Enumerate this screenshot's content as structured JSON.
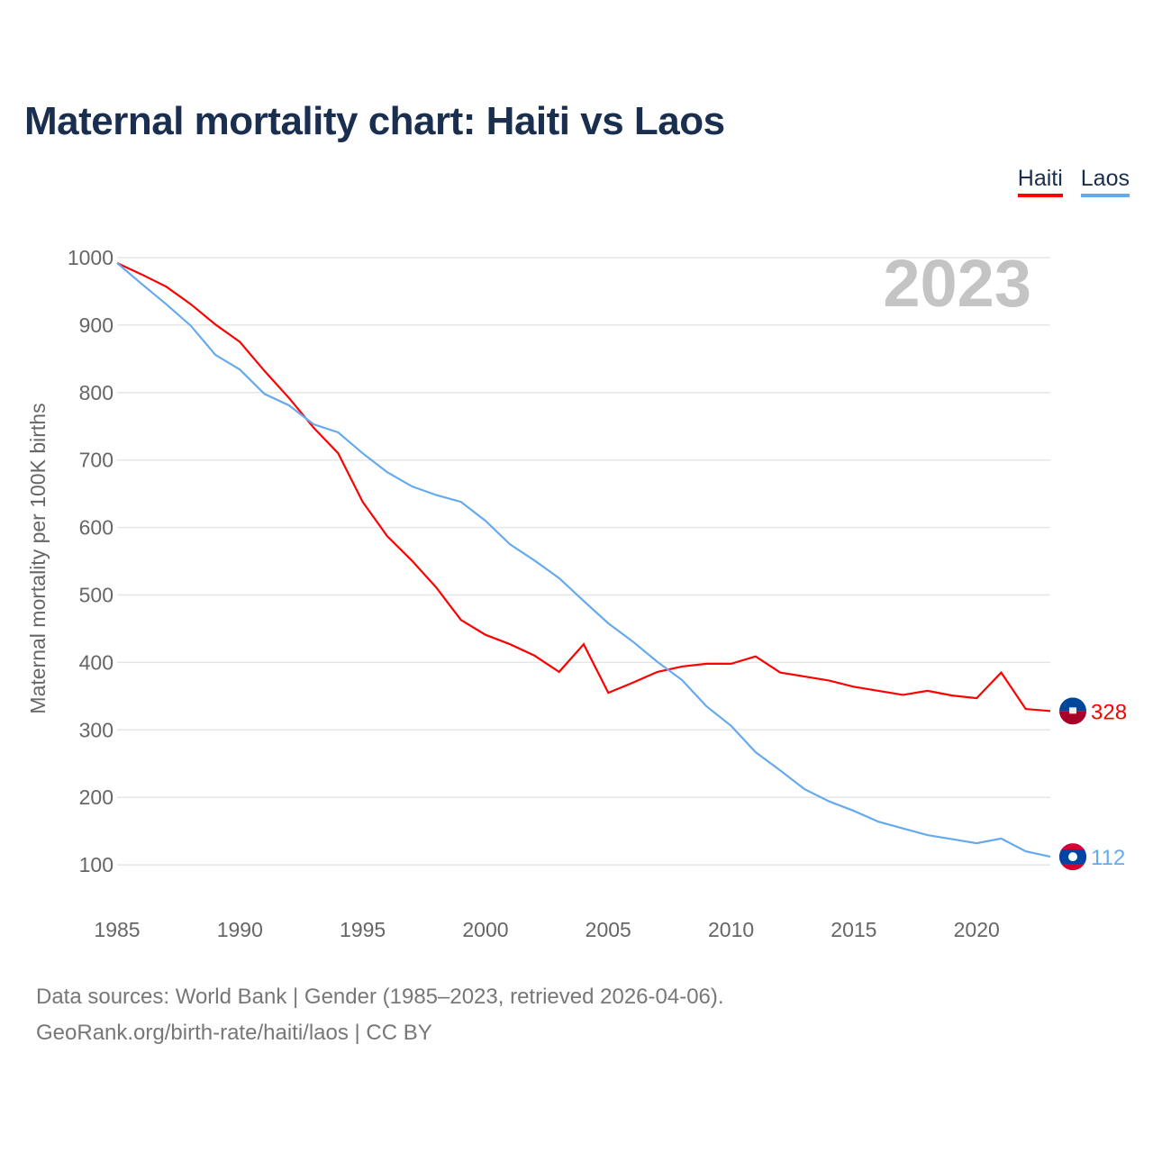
{
  "title": "Maternal mortality chart: Haiti vs Laos",
  "legend": [
    {
      "name": "Haiti",
      "color": "#ff0000"
    },
    {
      "name": "Laos",
      "color": "#66aaee"
    }
  ],
  "footer": {
    "line1": "Data sources: World Bank | Gender (1985–2023, retrieved 2026-04-06).",
    "line2": "GeoRank.org/birth-rate/haiti/laos | CC BY"
  },
  "chart_data": {
    "type": "line",
    "title": "Maternal mortality chart: Haiti vs Laos",
    "year_label": "2023",
    "xlabel": "",
    "ylabel": "Maternal mortality per 100K births",
    "xlim": [
      1985,
      2023
    ],
    "ylim": [
      0,
      1000
    ],
    "x_ticks": [
      1985,
      1990,
      1995,
      2000,
      2005,
      2010,
      2015,
      2020
    ],
    "y_ticks": [
      100,
      200,
      300,
      400,
      500,
      600,
      700,
      800,
      900,
      1000
    ],
    "grid": true,
    "legend_position": "top-right",
    "x": [
      1985,
      1986,
      1987,
      1988,
      1989,
      1990,
      1991,
      1992,
      1993,
      1994,
      1995,
      1996,
      1997,
      1998,
      1999,
      2000,
      2001,
      2002,
      2003,
      2004,
      2005,
      2006,
      2007,
      2008,
      2009,
      2010,
      2011,
      2012,
      2013,
      2014,
      2015,
      2016,
      2017,
      2018,
      2019,
      2020,
      2021,
      2022,
      2023
    ],
    "series": [
      {
        "name": "Haiti",
        "color": "#ff0000",
        "end_label": "328",
        "values": [
          992,
          975,
          957,
          931,
          901,
          875,
          832,
          792,
          748,
          710,
          638,
          587,
          551,
          511,
          463,
          441,
          427,
          410,
          386,
          427,
          355,
          370,
          386,
          394,
          398,
          398,
          409,
          385,
          379,
          373,
          364,
          358,
          352,
          358,
          351,
          347,
          385,
          331,
          328
        ]
      },
      {
        "name": "Laos",
        "color": "#66aaee",
        "end_label": "112",
        "values": [
          992,
          961,
          931,
          899,
          856,
          834,
          798,
          781,
          753,
          741,
          710,
          682,
          661,
          648,
          638,
          610,
          575,
          551,
          525,
          491,
          458,
          431,
          401,
          374,
          335,
          306,
          267,
          240,
          212,
          194,
          180,
          164,
          154,
          144,
          138,
          132,
          139,
          120,
          112
        ]
      }
    ]
  }
}
